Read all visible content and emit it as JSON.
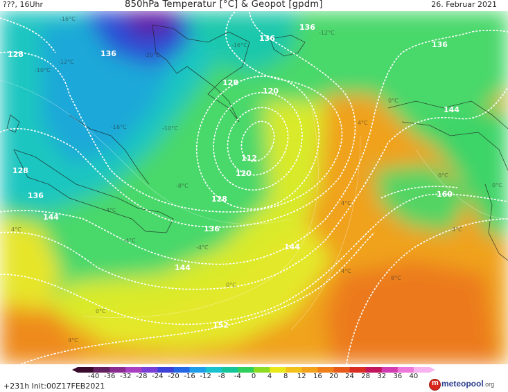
{
  "header": {
    "run_time": "???, 16Uhr",
    "title": "850hPa Temperatur [°C] & Geopot [gpdm]",
    "date": "26. Februar 2021"
  },
  "map": {
    "geopotential_labels": [
      "128",
      "136",
      "136",
      "136",
      "136",
      "128",
      "120",
      "112",
      "120",
      "128",
      "136",
      "144",
      "144",
      "144",
      "152",
      "128",
      "136",
      "144",
      "160"
    ],
    "temperature_labels": [
      "-16°C",
      "-12°C",
      "-10°C",
      "-20°C",
      "-16°C",
      "-12°C",
      "-16°C",
      "-10°C",
      "-8°C",
      "-4°C",
      "0°C",
      "4°C",
      "0°C",
      "4°C",
      "4°C",
      "0°C",
      "4°C",
      "8°C",
      "4°C",
      "0°C",
      "4°C",
      "-4°C",
      "0°C",
      "-4°C"
    ],
    "colors": {
      "deep_cold": "#5b0fa8",
      "cold": "#2c5ad8",
      "cool": "#1fc2c4",
      "mild": "#45d56a",
      "neutral": "#e4ea2a",
      "warm": "#f2a31b",
      "hot": "#ea6b1a"
    }
  },
  "legend": {
    "ticks": [
      "-40",
      "-36",
      "-32",
      "-28",
      "-24",
      "-20",
      "-16",
      "-12",
      "-8",
      "-4",
      "0",
      "4",
      "8",
      "12",
      "16",
      "20",
      "24",
      "28",
      "32",
      "36",
      "40"
    ],
    "colors": [
      "#3a0a2c",
      "#63205e",
      "#8a2b8f",
      "#a93fc1",
      "#7a3ed8",
      "#3c3fd8",
      "#2467e6",
      "#1d9ee8",
      "#19c3cf",
      "#14c59a",
      "#2fcf5c",
      "#8bdc22",
      "#e9e818",
      "#f3c21a",
      "#f2a31b",
      "#ee7f1a",
      "#e85a1a",
      "#d92c22",
      "#c2155c",
      "#d33bb0",
      "#ee77da",
      "#f7b2ef"
    ]
  },
  "footer": {
    "run_info": "+231h Init:00Z17FEB2021",
    "brand_name": "meteopool",
    "brand_tld": ".org",
    "brand_icon_letter": "m"
  }
}
